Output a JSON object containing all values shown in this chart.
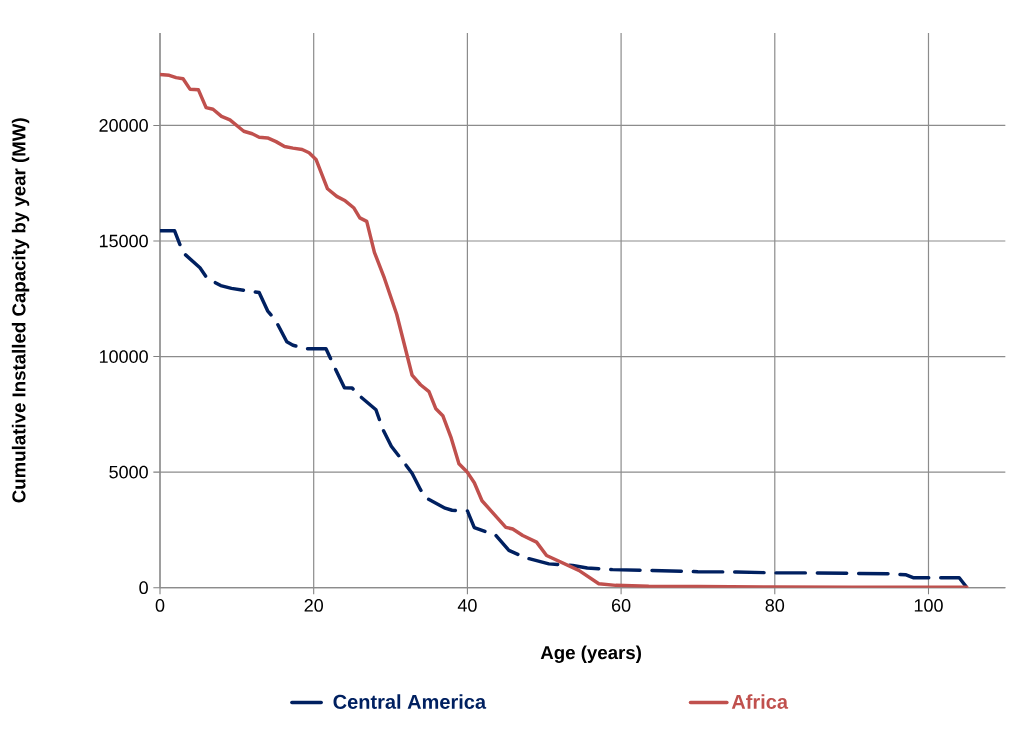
{
  "chart_data": {
    "type": "line",
    "xlabel": "Age (years)",
    "ylabel": "Cumulative Installed Capacity by year (MW)",
    "xlim": [
      0,
      110
    ],
    "ylim": [
      0,
      24000
    ],
    "xticks": [
      0,
      20,
      40,
      60,
      80,
      100
    ],
    "yticks": [
      0,
      5000,
      10000,
      15000,
      20000
    ],
    "grid": true,
    "legend": "bottom",
    "marker": "none",
    "series": [
      {
        "name": "Central America",
        "color": "#002060",
        "line_style": "dashed",
        "x": [
          0,
          1.9,
          3,
          5.2,
          6.1,
          7.9,
          9.3,
          12.2,
          12.9,
          14,
          15.1,
          16.5,
          17.3,
          19.1,
          21.6,
          22.7,
          24,
          25,
          25.9,
          28.1,
          29,
          30.1,
          31.9,
          32.8,
          33.9,
          34.6,
          37.1,
          38,
          40,
          40.9,
          43.7,
          45.4,
          47.6,
          50.6,
          53.7,
          55.6,
          58.9,
          63.7,
          70,
          75,
          80,
          85,
          90,
          95,
          97,
          98,
          104,
          105
        ],
        "values": [
          15440,
          15440,
          14500,
          13840,
          13400,
          13070,
          12950,
          12800,
          12770,
          11980,
          11530,
          10640,
          10490,
          10340,
          10340,
          9550,
          8650,
          8640,
          8320,
          7700,
          6850,
          6120,
          5350,
          4950,
          4240,
          3890,
          3440,
          3350,
          3320,
          2600,
          2260,
          1610,
          1290,
          1030,
          960,
          850,
          780,
          750,
          690,
          680,
          640,
          640,
          620,
          600,
          560,
          430,
          430,
          0
        ]
      },
      {
        "name": "Africa",
        "color": "#c0504d",
        "line_style": "solid",
        "x": [
          0,
          1.2,
          2.1,
          3,
          3.9,
          5,
          6,
          6.9,
          8,
          9.1,
          10.9,
          12,
          12.9,
          14,
          15.1,
          16.2,
          17.3,
          18.5,
          19.4,
          20.3,
          21.8,
          23,
          24.1,
          25.2,
          26,
          26.9,
          27.9,
          29.2,
          30.8,
          32.8,
          33.9,
          35,
          35.9,
          36.8,
          37.9,
          38.9,
          40,
          40.9,
          41.9,
          45,
          45.9,
          47.2,
          49,
          50.3,
          54.5,
          57.1,
          59.3,
          63.6,
          70,
          80,
          90,
          105
        ],
        "values": [
          22200,
          22170,
          22070,
          22020,
          21570,
          21540,
          20770,
          20700,
          20390,
          20240,
          19750,
          19640,
          19490,
          19460,
          19300,
          19090,
          19020,
          18960,
          18820,
          18530,
          17260,
          16930,
          16740,
          16440,
          16000,
          15850,
          14510,
          13390,
          11830,
          9200,
          8780,
          8480,
          7740,
          7440,
          6470,
          5360,
          4990,
          4540,
          3760,
          2610,
          2540,
          2260,
          1970,
          1390,
          750,
          170,
          100,
          60,
          50,
          30,
          20,
          20
        ]
      }
    ]
  }
}
